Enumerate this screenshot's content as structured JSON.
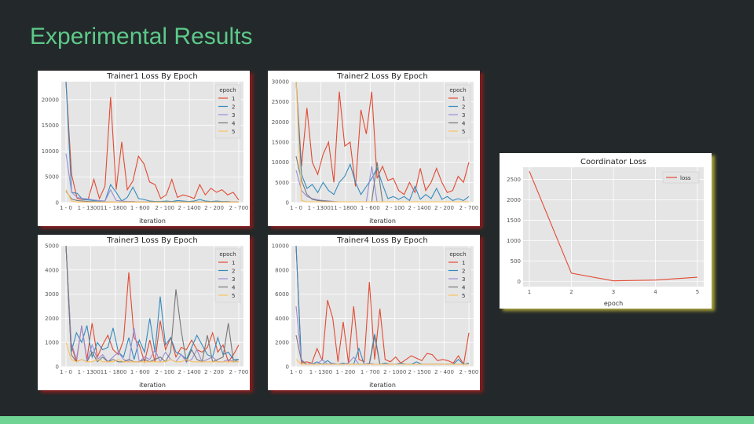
{
  "slide": {
    "title": "Experimental Results"
  },
  "colors": {
    "background": "#23292a",
    "title": "#5dc98a",
    "bar": "#6fd494",
    "plot_bg": "#e5e5e5"
  },
  "series_colors": [
    "#e24a33",
    "#348abd",
    "#988ed5",
    "#777777",
    "#fbc15e"
  ],
  "chart_data": [
    {
      "type": "line",
      "title": "Trainer1 Loss By Epoch",
      "xlabel": "iteration",
      "xticklabels": [
        "1 - 0",
        "1 - 13001",
        "1 - 1800",
        "1 - 600",
        "2 - 100",
        "2 - 1400",
        "2 - 200",
        "2 - 700"
      ],
      "ylim": [
        0,
        23500
      ],
      "yticks": [
        0,
        5000,
        10000,
        15000,
        20000
      ],
      "legend_title": "epoch",
      "grid": true,
      "series": [
        {
          "name": "1",
          "values": [
            23500,
            5500,
            800,
            600,
            700,
            4500,
            800,
            3200,
            20500,
            2500,
            11800,
            2500,
            4200,
            9000,
            7500,
            4000,
            3500,
            800,
            1500,
            4500,
            1000,
            1500,
            1200,
            800,
            3500,
            1500,
            2800,
            2000,
            2500,
            1500,
            2000,
            500
          ]
        },
        {
          "name": "2",
          "values": [
            23500,
            2000,
            1800,
            600,
            500,
            400,
            300,
            300,
            3500,
            2000,
            300,
            1000,
            3000,
            800,
            600,
            300,
            200,
            200,
            300,
            200,
            400,
            300,
            200,
            300,
            600,
            300,
            200,
            300,
            200,
            200,
            100,
            100
          ]
        },
        {
          "name": "3",
          "values": [
            9500,
            2000,
            1000,
            800,
            700,
            500,
            400,
            300,
            2500,
            400,
            300,
            200,
            200,
            100,
            100,
            100,
            100,
            100,
            100,
            100,
            100,
            100,
            100,
            100,
            100,
            100,
            100,
            100,
            100,
            100,
            100,
            100
          ]
        },
        {
          "name": "4",
          "values": [
            2200,
            700,
            400,
            300,
            200,
            200,
            100,
            100,
            100,
            100,
            100,
            100,
            100,
            100,
            100,
            100,
            100,
            100,
            100,
            100,
            100,
            100,
            100,
            100,
            100,
            100,
            100,
            100,
            100,
            100,
            100,
            100
          ]
        },
        {
          "name": "5",
          "values": [
            2500,
            300,
            100,
            100,
            100,
            100,
            100,
            100,
            100,
            100,
            100,
            100,
            100,
            100,
            100,
            100,
            100,
            100,
            100,
            100,
            100,
            100,
            100,
            100,
            100,
            100,
            100,
            100,
            100,
            100,
            100,
            100
          ]
        }
      ]
    },
    {
      "type": "line",
      "title": "Trainer2 Loss By Epoch",
      "xlabel": "iteration",
      "xticklabels": [
        "1 - 0",
        "1 - 13001",
        "1 - 1800",
        "1 - 600",
        "2 - 100",
        "2 - 1400",
        "2 - 200",
        "2 - 700"
      ],
      "ylim": [
        0,
        30000
      ],
      "yticks": [
        0,
        5000,
        10000,
        15000,
        20000,
        25000,
        30000
      ],
      "legend_title": "epoch",
      "grid": true,
      "series": [
        {
          "name": "1",
          "values": [
            30000,
            9000,
            23500,
            10000,
            7000,
            12000,
            15000,
            5000,
            27500,
            14000,
            15000,
            4000,
            23000,
            17000,
            27500,
            6000,
            9000,
            5500,
            6000,
            3000,
            2000,
            5000,
            2500,
            8500,
            3000,
            5000,
            8500,
            5000,
            2500,
            3000,
            6500,
            5000,
            10000
          ]
        },
        {
          "name": "2",
          "values": [
            30000,
            7000,
            3500,
            4500,
            2500,
            5000,
            3000,
            2000,
            5000,
            6500,
            9500,
            5000,
            2000,
            4000,
            6000,
            8500,
            4500,
            1000,
            1500,
            800,
            1500,
            500,
            4000,
            800,
            2000,
            1000,
            3500,
            800,
            1500,
            500,
            1000,
            500,
            1500
          ]
        },
        {
          "name": "3",
          "values": [
            8000,
            3000,
            1500,
            1000,
            700,
            500,
            400,
            300,
            200,
            200,
            200,
            200,
            200,
            200,
            9000,
            200,
            200,
            200,
            200,
            200,
            200,
            200,
            200,
            200,
            200,
            200,
            200,
            200,
            200,
            200,
            200,
            200,
            200
          ]
        },
        {
          "name": "4",
          "values": [
            11500,
            5500,
            2000,
            800,
            500,
            400,
            300,
            200,
            200,
            200,
            200,
            200,
            200,
            200,
            200,
            10000,
            200,
            200,
            200,
            200,
            200,
            200,
            200,
            200,
            200,
            200,
            200,
            200,
            200,
            200,
            200,
            200,
            200
          ]
        },
        {
          "name": "5",
          "values": [
            30000,
            500,
            200,
            200,
            200,
            200,
            200,
            200,
            200,
            200,
            200,
            200,
            200,
            200,
            200,
            200,
            200,
            200,
            200,
            200,
            200,
            200,
            200,
            200,
            200,
            200,
            200,
            200,
            200,
            200,
            200,
            200,
            200
          ]
        }
      ]
    },
    {
      "type": "line",
      "title": "Trainer3 Loss By Epoch",
      "xlabel": "iteration",
      "xticklabels": [
        "1 - 0",
        "1 - 13001",
        "1 - 1800",
        "1 - 600",
        "2 - 100",
        "2 - 1400",
        "2 - 200",
        "2 - 700"
      ],
      "ylim": [
        0,
        5000
      ],
      "yticks": [
        0,
        1000,
        2000,
        3000,
        4000,
        5000
      ],
      "legend_title": "epoch",
      "grid": true,
      "series": [
        {
          "name": "1",
          "values": [
            5000,
            900,
            200,
            1700,
            300,
            1800,
            400,
            900,
            1300,
            700,
            500,
            1100,
            3900,
            1200,
            900,
            200,
            1100,
            200,
            1900,
            700,
            1200,
            400,
            800,
            700,
            1100,
            700,
            600,
            800,
            1400,
            600,
            900,
            200,
            500,
            900
          ]
        },
        {
          "name": "2",
          "values": [
            5000,
            600,
            1400,
            1000,
            1700,
            400,
            1000,
            700,
            800,
            1600,
            600,
            400,
            1200,
            300,
            1100,
            600,
            2000,
            600,
            2900,
            900,
            1200,
            600,
            500,
            300,
            800,
            1300,
            900,
            500,
            400,
            1200,
            500,
            600,
            300,
            300
          ]
        },
        {
          "name": "3",
          "values": [
            5000,
            1000,
            300,
            1700,
            200,
            900,
            300,
            500,
            200,
            400,
            600,
            300,
            200,
            1600,
            200,
            400,
            300,
            700,
            200,
            600,
            300,
            200,
            500,
            200,
            300,
            700,
            200,
            300,
            400,
            200,
            200,
            300,
            200,
            200
          ]
        },
        {
          "name": "4",
          "values": [
            5000,
            500,
            200,
            300,
            200,
            600,
            200,
            400,
            200,
            300,
            200,
            200,
            300,
            200,
            200,
            300,
            200,
            300,
            400,
            200,
            600,
            3200,
            1500,
            200,
            700,
            300,
            200,
            1300,
            200,
            300,
            400,
            1800,
            200,
            300
          ]
        },
        {
          "name": "5",
          "values": [
            1000,
            300,
            200,
            300,
            200,
            200,
            300,
            200,
            200,
            200,
            300,
            200,
            200,
            200,
            200,
            200,
            200,
            200,
            200,
            200,
            300,
            200,
            200,
            300,
            200,
            200,
            200,
            200,
            200,
            200,
            200,
            200,
            200,
            200
          ]
        }
      ]
    },
    {
      "type": "line",
      "title": "Trainer4 Loss By Epoch",
      "xlabel": "iteration",
      "xticklabels": [
        "1 - 0",
        "1 - 1300",
        "1 - 200",
        "1 - 700",
        "2 - 1000",
        "2 - 1500",
        "2 - 400",
        "2 - 900"
      ],
      "ylim": [
        0,
        10000
      ],
      "yticks": [
        0,
        2000,
        4000,
        6000,
        8000,
        10000
      ],
      "legend_title": "epoch",
      "grid": true,
      "series": [
        {
          "name": "1",
          "values": [
            10000,
            300,
            400,
            300,
            1500,
            500,
            5500,
            4000,
            400,
            3700,
            300,
            5000,
            600,
            400,
            7000,
            600,
            4800,
            600,
            400,
            800,
            300,
            600,
            900,
            700,
            500,
            1100,
            1000,
            500,
            600,
            500,
            300,
            900,
            200,
            2800
          ]
        },
        {
          "name": "2",
          "values": [
            10000,
            500,
            200,
            200,
            400,
            200,
            500,
            200,
            200,
            300,
            200,
            200,
            1500,
            200,
            300,
            2700,
            200,
            300,
            200,
            200,
            300,
            200,
            200,
            400,
            200,
            200,
            200,
            200,
            200,
            200,
            200,
            600,
            200,
            300
          ]
        },
        {
          "name": "3",
          "values": [
            5000,
            600,
            200,
            300,
            200,
            600,
            200,
            300,
            200,
            200,
            300,
            800,
            200,
            200,
            300,
            200,
            200,
            200,
            200,
            200,
            200,
            200,
            200,
            200,
            200,
            200,
            200,
            200,
            200,
            200,
            200,
            200,
            200,
            200
          ]
        },
        {
          "name": "4",
          "values": [
            2600,
            500,
            200,
            200,
            200,
            200,
            200,
            200,
            200,
            200,
            200,
            200,
            200,
            200,
            200,
            2500,
            200,
            200,
            200,
            200,
            200,
            200,
            200,
            200,
            200,
            200,
            200,
            200,
            200,
            200,
            200,
            200,
            200,
            200
          ]
        },
        {
          "name": "5",
          "values": [
            600,
            200,
            200,
            200,
            200,
            200,
            200,
            200,
            200,
            200,
            200,
            200,
            200,
            200,
            200,
            200,
            200,
            200,
            200,
            200,
            200,
            200,
            200,
            200,
            200,
            200,
            200,
            200,
            200,
            200,
            200,
            200,
            200,
            200
          ]
        }
      ]
    },
    {
      "type": "line",
      "title": "Coordinator Loss",
      "xlabel": "epoch",
      "x": [
        1,
        2,
        3,
        4,
        5
      ],
      "xticklabels": [
        "1",
        "2",
        "3",
        "4",
        "5"
      ],
      "ylim": [
        -130,
        2800
      ],
      "yticks": [
        0,
        500,
        1000,
        1500,
        2000,
        2500
      ],
      "grid": true,
      "series": [
        {
          "name": "loss",
          "values": [
            2700,
            200,
            10,
            30,
            100
          ]
        }
      ]
    }
  ]
}
